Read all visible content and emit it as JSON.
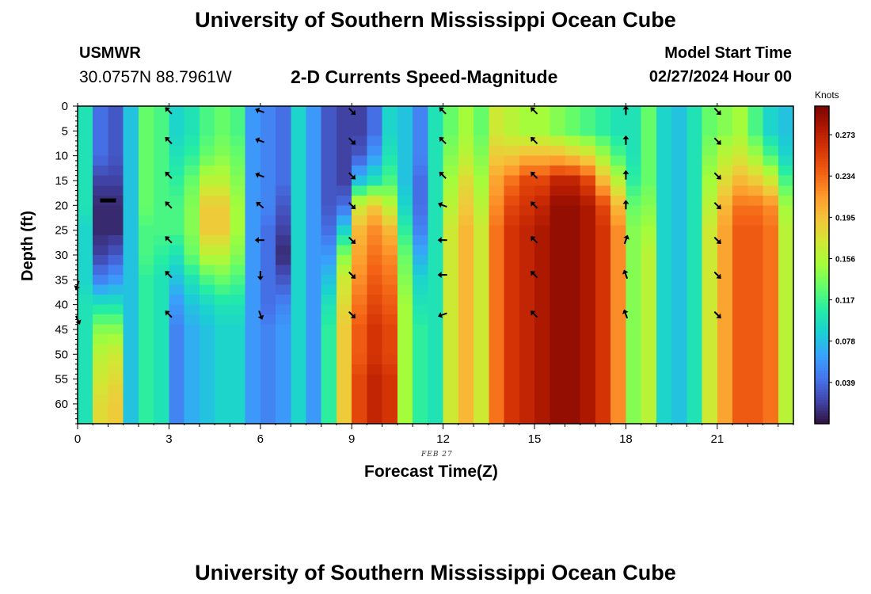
{
  "header": {
    "title": "University of Southern Mississippi Ocean Cube",
    "station_name": "USMWR",
    "station_coords": "30.0757N  88.7961W",
    "chart_heading": "2-D Currents Speed-Magnitude",
    "model_label": "Model Start Time",
    "model_time": "02/27/2024 Hour 00"
  },
  "footer": {
    "title": "University of Southern Mississippi Ocean Cube"
  },
  "colors": {
    "palette": [
      "#30123b",
      "#4145ab",
      "#4675ed",
      "#39a2fc",
      "#1bcfd4",
      "#24eca6",
      "#61fc6c",
      "#a4fc3b",
      "#d1e834",
      "#f3c63a",
      "#fe9b2d",
      "#f36315",
      "#d93806",
      "#b11901",
      "#7a0402"
    ]
  },
  "chart_data": {
    "type": "heatmap",
    "title": "2-D Currents Speed-Magnitude",
    "xlabel": "Forecast Time(Z)",
    "ylabel": "Depth (ft)",
    "x_sublabel": "FEB 27",
    "colorbar_label": "Knots",
    "colorbar_ticks": [
      "0.273",
      "0.234",
      "0.195",
      "0.156",
      "0.117",
      "0.078",
      "0.039"
    ],
    "colorbar_tick_values": [
      0.273,
      0.234,
      0.195,
      0.156,
      0.117,
      0.078,
      0.039
    ],
    "colorbar_range": [
      0.0,
      0.3
    ],
    "xlim": [
      0,
      23.5
    ],
    "ylim": [
      0,
      64
    ],
    "x_ticks": [
      0,
      3,
      6,
      9,
      12,
      15,
      18,
      21
    ],
    "y_ticks": [
      0,
      5,
      10,
      15,
      20,
      25,
      30,
      35,
      40,
      45,
      50,
      55,
      60
    ],
    "hours": [
      0,
      0.5,
      1,
      1.5,
      2,
      2.5,
      3,
      3.5,
      4,
      4.5,
      5,
      5.5,
      6,
      6.5,
      7,
      7.5,
      8,
      8.5,
      9,
      9.5,
      10,
      10.5,
      11,
      11.5,
      12,
      12.5,
      13,
      13.5,
      14,
      14.5,
      15,
      15.5,
      16,
      16.5,
      17,
      17.5,
      18,
      18.5,
      19,
      19.5,
      20,
      20.5,
      21,
      21.5,
      22,
      22.5,
      23,
      23.5
    ],
    "depth_profile_points": [
      0,
      5,
      10,
      15,
      20,
      25,
      30,
      35,
      40,
      45,
      50,
      55,
      60,
      64
    ],
    "speed_profiles": [
      [
        0.1,
        0.1,
        0.1,
        0.1,
        0.1,
        0.09,
        0.09,
        0.09,
        0.1,
        0.1,
        0.1,
        0.1,
        0.1,
        0.1
      ],
      [
        0.04,
        0.04,
        0.04,
        0.02,
        0.01,
        0.01,
        0.02,
        0.05,
        0.1,
        0.14,
        0.16,
        0.17,
        0.18,
        0.18
      ],
      [
        0.03,
        0.03,
        0.03,
        0.02,
        0.01,
        0.01,
        0.03,
        0.06,
        0.1,
        0.14,
        0.17,
        0.18,
        0.19,
        0.19
      ],
      [
        0.08,
        0.08,
        0.08,
        0.08,
        0.08,
        0.08,
        0.08,
        0.08,
        0.08,
        0.08,
        0.08,
        0.08,
        0.08,
        0.08
      ],
      [
        0.13,
        0.13,
        0.13,
        0.13,
        0.13,
        0.12,
        0.12,
        0.11,
        0.11,
        0.11,
        0.11,
        0.11,
        0.11,
        0.11
      ],
      [
        0.12,
        0.12,
        0.12,
        0.12,
        0.12,
        0.12,
        0.11,
        0.1,
        0.1,
        0.1,
        0.1,
        0.1,
        0.1,
        0.1
      ],
      [
        0.09,
        0.09,
        0.1,
        0.11,
        0.12,
        0.12,
        0.1,
        0.08,
        0.06,
        0.05,
        0.05,
        0.05,
        0.05,
        0.05
      ],
      [
        0.1,
        0.1,
        0.11,
        0.13,
        0.14,
        0.14,
        0.13,
        0.1,
        0.08,
        0.07,
        0.07,
        0.07,
        0.07,
        0.07
      ],
      [
        0.12,
        0.12,
        0.13,
        0.16,
        0.19,
        0.19,
        0.16,
        0.12,
        0.09,
        0.08,
        0.08,
        0.08,
        0.08,
        0.08
      ],
      [
        0.13,
        0.13,
        0.14,
        0.16,
        0.19,
        0.19,
        0.16,
        0.13,
        0.1,
        0.09,
        0.09,
        0.09,
        0.09,
        0.09
      ],
      [
        0.12,
        0.12,
        0.13,
        0.14,
        0.15,
        0.15,
        0.14,
        0.12,
        0.1,
        0.09,
        0.09,
        0.09,
        0.09,
        0.09
      ],
      [
        0.06,
        0.06,
        0.06,
        0.06,
        0.06,
        0.06,
        0.06,
        0.06,
        0.06,
        0.06,
        0.06,
        0.06,
        0.06,
        0.06
      ],
      [
        0.05,
        0.05,
        0.05,
        0.05,
        0.05,
        0.04,
        0.04,
        0.04,
        0.04,
        0.05,
        0.05,
        0.05,
        0.05,
        0.05
      ],
      [
        0.04,
        0.04,
        0.04,
        0.04,
        0.03,
        0.02,
        0.01,
        0.03,
        0.05,
        0.06,
        0.06,
        0.06,
        0.06,
        0.06
      ],
      [
        0.09,
        0.09,
        0.09,
        0.09,
        0.09,
        0.09,
        0.09,
        0.09,
        0.09,
        0.09,
        0.09,
        0.09,
        0.09,
        0.09
      ],
      [
        0.06,
        0.06,
        0.06,
        0.06,
        0.06,
        0.06,
        0.06,
        0.06,
        0.06,
        0.06,
        0.06,
        0.06,
        0.06,
        0.06
      ],
      [
        0.03,
        0.03,
        0.03,
        0.03,
        0.03,
        0.04,
        0.06,
        0.08,
        0.1,
        0.11,
        0.11,
        0.11,
        0.11,
        0.11
      ],
      [
        0.02,
        0.02,
        0.02,
        0.02,
        0.04,
        0.09,
        0.14,
        0.17,
        0.18,
        0.19,
        0.19,
        0.19,
        0.19,
        0.19
      ],
      [
        0.02,
        0.02,
        0.03,
        0.08,
        0.17,
        0.2,
        0.21,
        0.22,
        0.23,
        0.24,
        0.24,
        0.25,
        0.25,
        0.25
      ],
      [
        0.04,
        0.04,
        0.06,
        0.1,
        0.19,
        0.22,
        0.23,
        0.24,
        0.25,
        0.26,
        0.26,
        0.27,
        0.27,
        0.27
      ],
      [
        0.09,
        0.09,
        0.1,
        0.12,
        0.16,
        0.2,
        0.22,
        0.23,
        0.24,
        0.25,
        0.25,
        0.26,
        0.26,
        0.26
      ],
      [
        0.08,
        0.08,
        0.08,
        0.08,
        0.09,
        0.11,
        0.13,
        0.14,
        0.15,
        0.15,
        0.15,
        0.15,
        0.15,
        0.15
      ],
      [
        0.05,
        0.05,
        0.05,
        0.04,
        0.04,
        0.05,
        0.07,
        0.09,
        0.1,
        0.11,
        0.11,
        0.11,
        0.11,
        0.11
      ],
      [
        0.1,
        0.1,
        0.1,
        0.1,
        0.1,
        0.1,
        0.1,
        0.1,
        0.1,
        0.1,
        0.1,
        0.1,
        0.1,
        0.1
      ],
      [
        0.13,
        0.13,
        0.14,
        0.15,
        0.16,
        0.17,
        0.17,
        0.17,
        0.17,
        0.17,
        0.17,
        0.17,
        0.17,
        0.17
      ],
      [
        0.15,
        0.15,
        0.16,
        0.18,
        0.19,
        0.2,
        0.2,
        0.2,
        0.2,
        0.2,
        0.2,
        0.2,
        0.2,
        0.2
      ],
      [
        0.13,
        0.13,
        0.14,
        0.15,
        0.16,
        0.17,
        0.17,
        0.17,
        0.17,
        0.17,
        0.17,
        0.17,
        0.17,
        0.17
      ],
      [
        0.17,
        0.17,
        0.19,
        0.21,
        0.22,
        0.23,
        0.23,
        0.23,
        0.23,
        0.23,
        0.23,
        0.23,
        0.23,
        0.23
      ],
      [
        0.16,
        0.16,
        0.19,
        0.23,
        0.25,
        0.26,
        0.26,
        0.26,
        0.26,
        0.26,
        0.26,
        0.26,
        0.26,
        0.26
      ],
      [
        0.15,
        0.15,
        0.2,
        0.25,
        0.26,
        0.27,
        0.27,
        0.27,
        0.27,
        0.27,
        0.27,
        0.27,
        0.27,
        0.27
      ],
      [
        0.15,
        0.15,
        0.2,
        0.25,
        0.27,
        0.28,
        0.28,
        0.28,
        0.28,
        0.28,
        0.28,
        0.28,
        0.28,
        0.28
      ],
      [
        0.14,
        0.14,
        0.2,
        0.27,
        0.29,
        0.29,
        0.29,
        0.29,
        0.29,
        0.29,
        0.29,
        0.29,
        0.29,
        0.29
      ],
      [
        0.13,
        0.13,
        0.19,
        0.27,
        0.29,
        0.29,
        0.29,
        0.29,
        0.29,
        0.29,
        0.29,
        0.29,
        0.29,
        0.29
      ],
      [
        0.12,
        0.12,
        0.18,
        0.25,
        0.28,
        0.28,
        0.28,
        0.28,
        0.28,
        0.28,
        0.28,
        0.28,
        0.28,
        0.28
      ],
      [
        0.11,
        0.11,
        0.15,
        0.2,
        0.25,
        0.26,
        0.26,
        0.26,
        0.26,
        0.26,
        0.26,
        0.26,
        0.26,
        0.26
      ],
      [
        0.1,
        0.1,
        0.12,
        0.16,
        0.2,
        0.22,
        0.22,
        0.22,
        0.22,
        0.22,
        0.22,
        0.22,
        0.22,
        0.22
      ],
      [
        0.1,
        0.1,
        0.1,
        0.11,
        0.13,
        0.14,
        0.14,
        0.14,
        0.14,
        0.14,
        0.14,
        0.14,
        0.14,
        0.14
      ],
      [
        0.13,
        0.13,
        0.13,
        0.13,
        0.14,
        0.15,
        0.16,
        0.16,
        0.16,
        0.16,
        0.16,
        0.16,
        0.16,
        0.16
      ],
      [
        0.09,
        0.09,
        0.09,
        0.09,
        0.09,
        0.09,
        0.09,
        0.09,
        0.09,
        0.09,
        0.09,
        0.09,
        0.09,
        0.09
      ],
      [
        0.08,
        0.08,
        0.08,
        0.08,
        0.08,
        0.08,
        0.08,
        0.08,
        0.08,
        0.08,
        0.08,
        0.08,
        0.08,
        0.08
      ],
      [
        0.1,
        0.1,
        0.1,
        0.1,
        0.1,
        0.1,
        0.1,
        0.1,
        0.1,
        0.1,
        0.1,
        0.1,
        0.1,
        0.1
      ],
      [
        0.13,
        0.13,
        0.14,
        0.15,
        0.16,
        0.17,
        0.17,
        0.17,
        0.17,
        0.17,
        0.17,
        0.17,
        0.17,
        0.17
      ],
      [
        0.14,
        0.14,
        0.16,
        0.18,
        0.2,
        0.21,
        0.21,
        0.21,
        0.21,
        0.21,
        0.21,
        0.21,
        0.21,
        0.21
      ],
      [
        0.15,
        0.15,
        0.17,
        0.2,
        0.23,
        0.24,
        0.24,
        0.24,
        0.24,
        0.24,
        0.24,
        0.24,
        0.24,
        0.24
      ],
      [
        0.12,
        0.12,
        0.15,
        0.19,
        0.23,
        0.24,
        0.24,
        0.24,
        0.24,
        0.24,
        0.24,
        0.24,
        0.24,
        0.24
      ],
      [
        0.09,
        0.09,
        0.12,
        0.17,
        0.22,
        0.23,
        0.23,
        0.23,
        0.23,
        0.23,
        0.23,
        0.23,
        0.23,
        0.23
      ],
      [
        0.08,
        0.08,
        0.09,
        0.12,
        0.15,
        0.16,
        0.16,
        0.16,
        0.16,
        0.16,
        0.16,
        0.16,
        0.16,
        0.16
      ],
      [
        0.05,
        0.05,
        0.05,
        0.05,
        0.05,
        0.05,
        0.05,
        0.05,
        0.05,
        0.05,
        0.05,
        0.05,
        0.05,
        0.05
      ]
    ],
    "vector_depths": [
      1,
      7,
      14,
      20,
      27,
      34,
      42
    ],
    "vectors": [
      {
        "hour": 0,
        "depth": 36,
        "dir_deg": 200
      },
      {
        "hour": 0,
        "depth": 43,
        "dir_deg": 155
      },
      {
        "hour": 1,
        "depth": 19,
        "dir_deg": 270,
        "bar": true
      },
      {
        "hour": 3,
        "hours_dirs": [
          315,
          315,
          315,
          315,
          315,
          315,
          315
        ]
      },
      {
        "hour": 6,
        "hours_dirs": [
          290,
          290,
          290,
          310,
          270,
          180,
          160
        ]
      },
      {
        "hour": 9,
        "hours_dirs": [
          135,
          135,
          135,
          135,
          135,
          135,
          135
        ]
      },
      {
        "hour": 12,
        "hours_dirs": [
          315,
          315,
          315,
          290,
          270,
          270,
          250
        ]
      },
      {
        "hour": 15,
        "hours_dirs": [
          315,
          315,
          315,
          315,
          315,
          315,
          315
        ]
      },
      {
        "hour": 18,
        "hours_dirs": [
          360,
          360,
          360,
          360,
          20,
          340,
          340
        ]
      },
      {
        "hour": 21,
        "hours_dirs": [
          135,
          135,
          135,
          135,
          135,
          135,
          135
        ]
      }
    ]
  }
}
